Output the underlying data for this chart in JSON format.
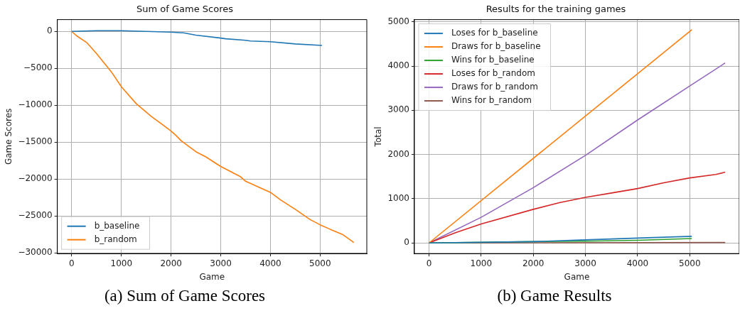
{
  "chart_data": [
    {
      "type": "line",
      "title": "Sum of Game Scores",
      "xlabel": "Game",
      "ylabel": "Game Scores",
      "annotations": [
        "(a) Sum of Game Scores"
      ],
      "xlim": [
        -290,
        5940
      ],
      "ylim": [
        -30100,
        1600
      ],
      "xticks": [
        0,
        1000,
        2000,
        3000,
        4000,
        5000
      ],
      "yticks": [
        -30000,
        -25000,
        -20000,
        -15000,
        -10000,
        -5000,
        0
      ],
      "grid": true,
      "legend": "bottom left",
      "marker": "none",
      "line_style": "solid",
      "series": [
        {
          "name": "b_baseline",
          "color": "#1f77b4",
          "x": [
            0,
            500,
            1000,
            1500,
            2000,
            2250,
            2500,
            3000,
            3100,
            3500,
            3600,
            4000,
            4500,
            5040
          ],
          "values": [
            0,
            100,
            100,
            0,
            -100,
            -200,
            -500,
            -900,
            -1000,
            -1200,
            -1300,
            -1400,
            -1700,
            -1900
          ]
        },
        {
          "name": "b_random",
          "color": "#ff7f0e",
          "x": [
            0,
            100,
            300,
            500,
            800,
            1000,
            1300,
            1600,
            1800,
            2000,
            2100,
            2200,
            2500,
            2700,
            3000,
            3200,
            3400,
            3500,
            3800,
            4000,
            4200,
            4500,
            4800,
            5000,
            5200,
            5450,
            5680
          ],
          "values": [
            0,
            -600,
            -1500,
            -3000,
            -5500,
            -7500,
            -9800,
            -11500,
            -12500,
            -13500,
            -14100,
            -14800,
            -16300,
            -17000,
            -18300,
            -19000,
            -19700,
            -20300,
            -21200,
            -21800,
            -22800,
            -24100,
            -25500,
            -26200,
            -26800,
            -27500,
            -28600
          ]
        }
      ]
    },
    {
      "type": "line",
      "title": "Results for the training games",
      "xlabel": "Game",
      "ylabel": "Total",
      "annotations": [
        "(b) Game Results"
      ],
      "xlim": [
        -280,
        5950
      ],
      "ylim": [
        -240,
        5050
      ],
      "xticks": [
        0,
        1000,
        2000,
        3000,
        4000,
        5000
      ],
      "yticks": [
        0,
        1000,
        2000,
        3000,
        4000,
        5000
      ],
      "grid": true,
      "legend": "top left",
      "marker": "none",
      "line_style": "solid",
      "series": [
        {
          "name": "Loses for b_baseline",
          "color": "#1f77b4",
          "x": [
            0,
            2000,
            3000,
            4000,
            5040
          ],
          "values": [
            0,
            30,
            70,
            110,
            150
          ]
        },
        {
          "name": "Draws for b_baseline",
          "color": "#ff7f0e",
          "x": [
            0,
            5040
          ],
          "values": [
            0,
            4820
          ]
        },
        {
          "name": "Wins for b_baseline",
          "color": "#2ca02c",
          "x": [
            0,
            2000,
            3000,
            4000,
            5040
          ],
          "values": [
            0,
            30,
            40,
            60,
            100
          ]
        },
        {
          "name": "Loses for b_random",
          "color": "#d62728",
          "x": [
            0,
            500,
            1000,
            2000,
            2500,
            3000,
            3500,
            4000,
            4500,
            5000,
            5500,
            5680
          ],
          "values": [
            0,
            230,
            430,
            760,
            910,
            1030,
            1130,
            1230,
            1360,
            1470,
            1550,
            1600
          ]
        },
        {
          "name": "Draws for b_random",
          "color": "#9467bd",
          "x": [
            0,
            1000,
            2000,
            3000,
            4000,
            5000,
            5680
          ],
          "values": [
            0,
            580,
            1250,
            1980,
            2780,
            3550,
            4070
          ]
        },
        {
          "name": "Wins for b_random",
          "color": "#8c564b",
          "x": [
            0,
            5680
          ],
          "values": [
            0,
            10
          ]
        }
      ]
    }
  ]
}
